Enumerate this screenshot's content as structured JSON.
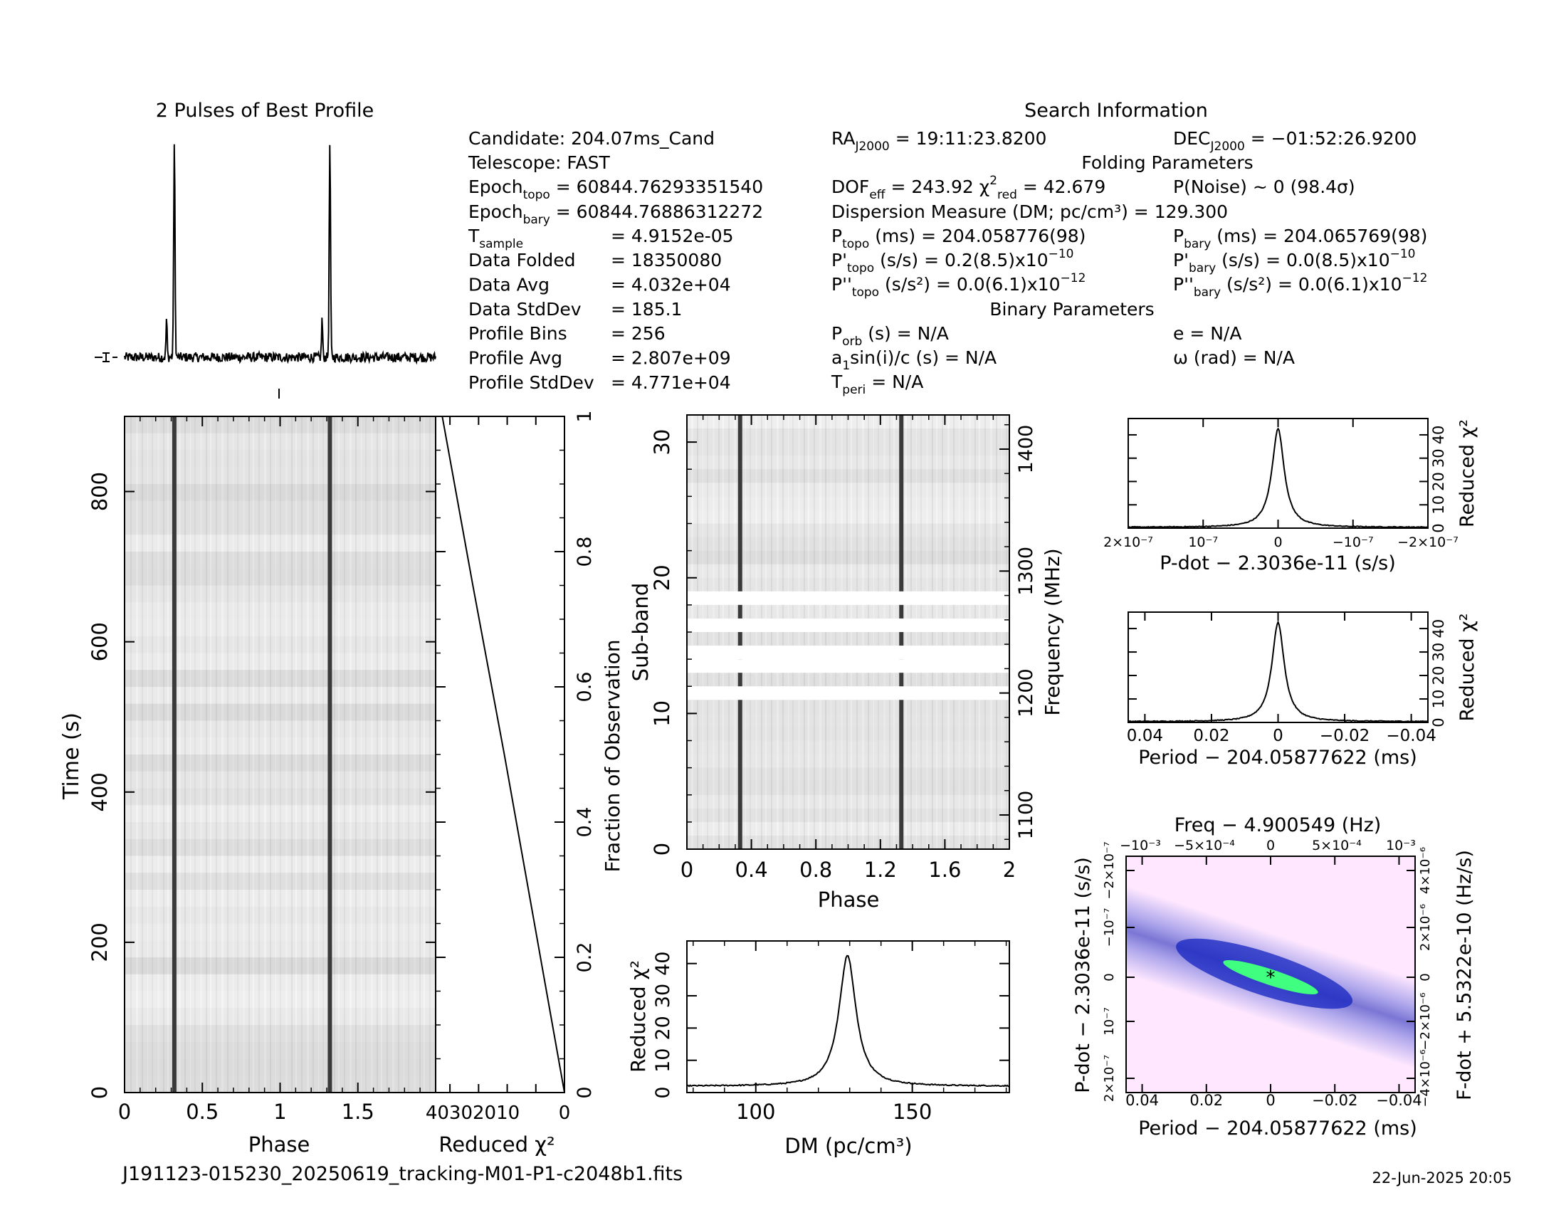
{
  "figure": {
    "filename": "J191123-015230_20250619_tracking-M01-P1-c2048b1.fits",
    "date": "22-Jun-2025 20:05"
  },
  "profile": {
    "title": "2 Pulses of Best Profile"
  },
  "search_info": {
    "title": "Search Information",
    "candidate": "Candidate:  204.07ms_Cand",
    "telescope": "Telescope:  FAST",
    "epoch_topo_val": "= 60844.76293351540",
    "epoch_bary_val": "= 60844.76886312272",
    "t_sample_val": "=    4.9152e-05",
    "rows": [
      {
        "label": "Data Folded",
        "value": "=    18350080"
      },
      {
        "label": "Data Avg",
        "value": "=    4.032e+04"
      },
      {
        "label": "Data StdDev",
        "value": "=    185.1"
      },
      {
        "label": "Profile Bins",
        "value": "=    256"
      },
      {
        "label": "Profile Avg",
        "value": "=    2.807e+09"
      },
      {
        "label": "Profile StdDev",
        "value": "=    4.771e+04"
      }
    ],
    "ra_val": "= 19:11:23.8200",
    "dec_val": "= −01:52:26.9200",
    "folding_title": "Folding Parameters",
    "dof_val": "= 243.92",
    "chi_red_val": "= 42.679",
    "pnoise": "P(Noise) ~ 0    (98.4σ)",
    "dm_line": "Dispersion Measure (DM; pc/cm³) = 129.300",
    "ptopo_val": "(ms)  =   204.058776(98)",
    "pbary_val": "(ms)  =   204.065769(98)",
    "pdot_topo_val": "(s/s)  =   0.2(8.5)x10",
    "pdot_bary_val": "(s/s)  = 0.0(8.5)x10",
    "pdot_exp": "−10",
    "pddot_topo_val": "(s/s²) = 0.0(6.1)x10",
    "pddot_bary_val": "(s/s²) = 0.0(6.1)x10",
    "pddot_exp": "−12",
    "binary_title": "Binary Parameters",
    "porb_val": "(s) = N/A",
    "e_line": "e = N/A",
    "asini_val": "sin(i)/c (s) = N/A",
    "omega_line": "ω (rad) = N/A",
    "tperi_val": "= N/A"
  },
  "chart_data": [
    {
      "id": "best_profile",
      "type": "line",
      "title": "2 Pulses of Best Profile",
      "x_range": [
        0,
        2
      ],
      "pulse_phases": [
        0.32,
        1.32
      ],
      "precursor_phases": [
        0.27,
        1.27
      ],
      "peak_height": 1.0,
      "precursor_height": 0.18
    },
    {
      "id": "time_phase",
      "type": "heatmap",
      "xlabel": "Phase",
      "ylabel": "Time (s)",
      "x_ticks": [
        "0",
        "0.5",
        "1",
        "1.5"
      ],
      "y_ticks": [
        "0",
        "200",
        "400",
        "600",
        "800"
      ],
      "xlim": [
        0,
        2
      ],
      "ylim": [
        0,
        900
      ],
      "pulse_phases": [
        0.32,
        1.32
      ]
    },
    {
      "id": "chi2_vs_time",
      "type": "line",
      "xlabel": "Reduced χ²",
      "ylabel": "Fraction of Observation",
      "x_ticks": [
        "40",
        "30",
        "20",
        "10",
        "0"
      ],
      "y_ticks": [
        "0",
        "0.2",
        "0.4",
        "0.6",
        "0.8",
        "1"
      ],
      "xlim": [
        45,
        0
      ],
      "ylim": [
        0,
        1
      ],
      "points": [
        [
          0,
          0
        ],
        [
          10.5,
          0.25
        ],
        [
          21,
          0.5
        ],
        [
          32,
          0.75
        ],
        [
          42.7,
          1.0
        ]
      ]
    },
    {
      "id": "subband_phase",
      "type": "heatmap",
      "xlabel": "Phase",
      "ylabel": "Sub-band",
      "y2label": "Frequency (MHz)",
      "x_ticks": [
        "0",
        "0.4",
        "0.8",
        "1.2",
        "1.6",
        "2"
      ],
      "y_ticks": [
        "0",
        "10",
        "20",
        "30"
      ],
      "y2_ticks": [
        "1100",
        "1200",
        "1300",
        "1400"
      ],
      "xlim": [
        0,
        2
      ],
      "ylim": [
        0,
        32
      ],
      "masked_subbands": [
        11,
        13,
        14,
        16,
        18
      ],
      "pulse_phases": [
        0.33,
        1.33
      ]
    },
    {
      "id": "dm_curve",
      "type": "line",
      "xlabel": "DM (pc/cm³)",
      "ylabel": "Reduced χ²",
      "x_ticks": [
        "100",
        "150"
      ],
      "y_ticks": [
        "0",
        "10",
        "20",
        "30",
        "40"
      ],
      "xlim": [
        78,
        181
      ],
      "ylim": [
        0,
        47
      ],
      "peak_dm": 129.3,
      "peak_value": 42.679,
      "baseline": 2.0
    },
    {
      "id": "pdot_curve",
      "type": "line",
      "xlabel": "P-dot − 2.3036e-11 (s/s)",
      "ylabel": "Reduced χ²",
      "x_ticks": [
        "2×10⁻⁷",
        "10⁻⁷",
        "0",
        "−10⁻⁷",
        "−2×10⁻⁷"
      ],
      "y_ticks": [
        "0",
        "10",
        "20",
        "30",
        "40"
      ],
      "xlim": [
        2e-07,
        -2e-07
      ],
      "ylim": [
        0,
        47
      ],
      "peak_value": 42.679
    },
    {
      "id": "period_curve",
      "type": "line",
      "xlabel": "Period − 204.05877622 (ms)",
      "ylabel": "Reduced χ²",
      "x_ticks": [
        "0.04",
        "0.02",
        "0",
        "−0.02",
        "−0.04"
      ],
      "y_ticks": [
        "0",
        "10",
        "20",
        "30",
        "40"
      ],
      "xlim": [
        0.045,
        -0.045
      ],
      "ylim": [
        0,
        47
      ],
      "peak_value": 42.679
    },
    {
      "id": "p_pdot_plane",
      "type": "heatmap",
      "title": "Freq − 4.900549 (Hz)",
      "xlabel": "Period − 204.05877622 (ms)",
      "ylabel": "P-dot − 2.3036e-11 (s/s)",
      "y2label": "F-dot + 5.5322e-10 (Hz/s)",
      "x_ticks": [
        "0.04",
        "0.02",
        "0",
        "−0.02",
        "−0.04"
      ],
      "top_ticks": [
        "−10⁻³",
        "−5×10⁻⁴",
        "0",
        "5×10⁻⁴",
        "10⁻³"
      ],
      "y_ticks": [
        "2×10⁻⁷",
        "10⁻⁷",
        "0",
        "−10⁻⁷",
        "−2×10⁻⁷"
      ],
      "y2_ticks": [
        "−4×10⁻⁶",
        "−2×10⁻⁶",
        "0",
        "2×10⁻⁶",
        "4×10⁻⁶"
      ],
      "best_period": 0,
      "best_pdot": 0,
      "colors": {
        "high": "#40ff80",
        "mid": "#1020c0",
        "low": "#ffe8ff"
      }
    }
  ]
}
